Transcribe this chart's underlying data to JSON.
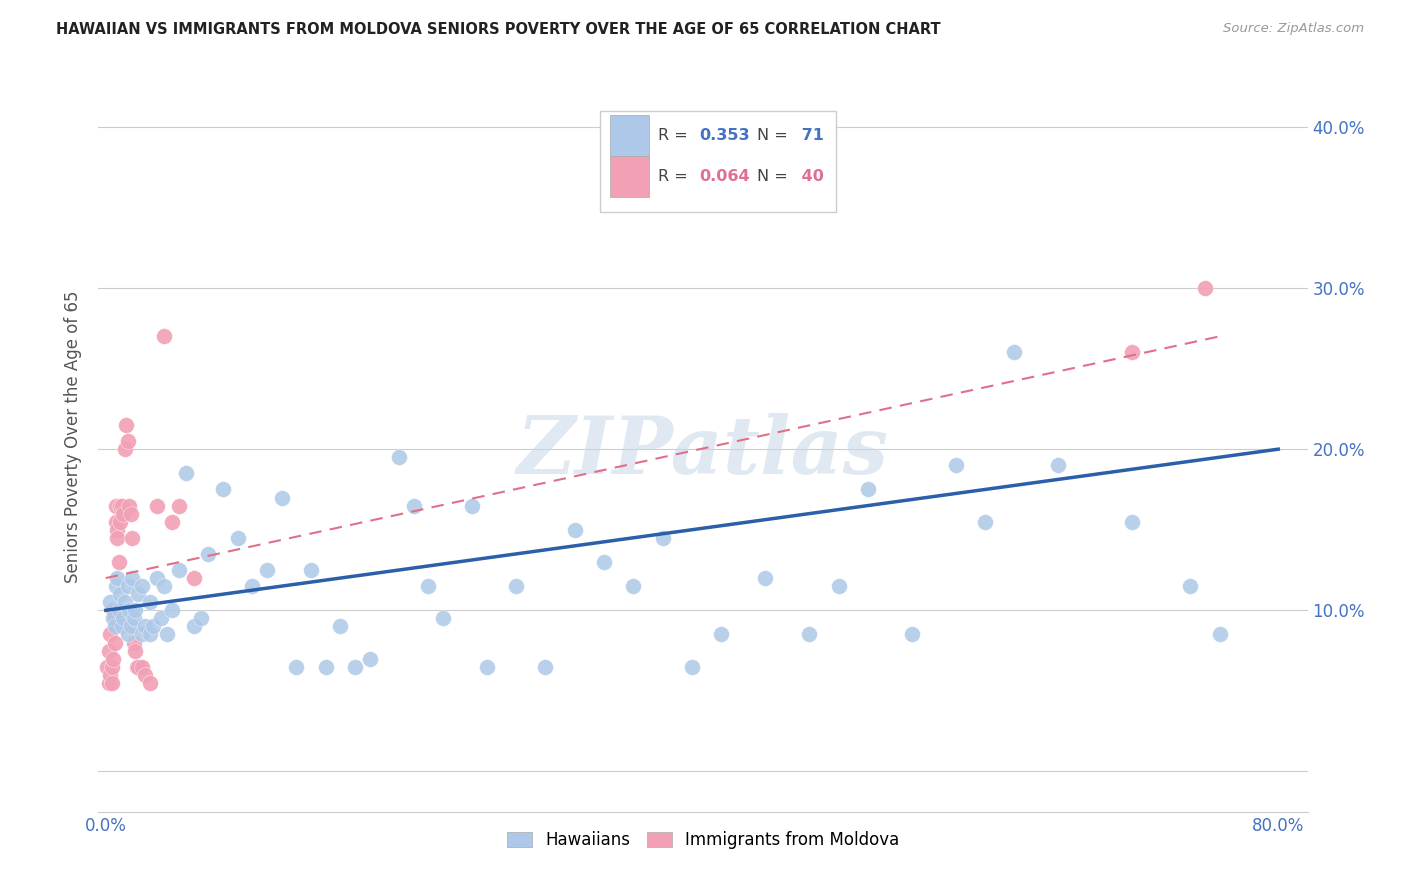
{
  "title": "HAWAIIAN VS IMMIGRANTS FROM MOLDOVA SENIORS POVERTY OVER THE AGE OF 65 CORRELATION CHART",
  "source": "Source: ZipAtlas.com",
  "ylabel": "Seniors Poverty Over the Age of 65",
  "xlim": [
    -0.005,
    0.82
  ],
  "ylim": [
    -0.025,
    0.44
  ],
  "yticks": [
    0.0,
    0.1,
    0.2,
    0.3,
    0.4
  ],
  "xticks": [
    0.0,
    0.1,
    0.2,
    0.3,
    0.4,
    0.5,
    0.6,
    0.7,
    0.8
  ],
  "legend_r_hawaiian": "0.353",
  "legend_n_hawaiian": "71",
  "legend_r_moldova": "0.064",
  "legend_n_moldova": "40",
  "hawaiian_color": "#adc8e8",
  "moldova_color": "#f2a0b5",
  "hawaiian_line_color": "#2c5faa",
  "moldova_line_color": "#e0708a",
  "watermark": "ZIPatlas",
  "haw_line_x0": 0.0,
  "haw_line_x1": 0.8,
  "haw_line_y0": 0.1,
  "haw_line_y1": 0.2,
  "mol_line_x0": 0.0,
  "mol_line_x1": 0.76,
  "mol_line_y0": 0.12,
  "mol_line_y1": 0.27,
  "hawaiian_x": [
    0.003,
    0.005,
    0.006,
    0.007,
    0.008,
    0.009,
    0.01,
    0.011,
    0.012,
    0.013,
    0.015,
    0.015,
    0.016,
    0.017,
    0.018,
    0.019,
    0.02,
    0.022,
    0.025,
    0.025,
    0.027,
    0.03,
    0.03,
    0.032,
    0.035,
    0.038,
    0.04,
    0.042,
    0.045,
    0.05,
    0.055,
    0.06,
    0.065,
    0.07,
    0.08,
    0.09,
    0.1,
    0.11,
    0.12,
    0.13,
    0.14,
    0.15,
    0.16,
    0.17,
    0.18,
    0.2,
    0.21,
    0.22,
    0.23,
    0.25,
    0.26,
    0.28,
    0.3,
    0.32,
    0.34,
    0.36,
    0.38,
    0.4,
    0.42,
    0.45,
    0.48,
    0.5,
    0.52,
    0.55,
    0.58,
    0.6,
    0.62,
    0.65,
    0.7,
    0.74,
    0.76
  ],
  "hawaiian_y": [
    0.105,
    0.095,
    0.09,
    0.115,
    0.12,
    0.1,
    0.11,
    0.09,
    0.095,
    0.105,
    0.115,
    0.085,
    0.1,
    0.09,
    0.12,
    0.095,
    0.1,
    0.11,
    0.115,
    0.085,
    0.09,
    0.105,
    0.085,
    0.09,
    0.12,
    0.095,
    0.115,
    0.085,
    0.1,
    0.125,
    0.185,
    0.09,
    0.095,
    0.135,
    0.175,
    0.145,
    0.115,
    0.125,
    0.17,
    0.065,
    0.125,
    0.065,
    0.09,
    0.065,
    0.07,
    0.195,
    0.165,
    0.115,
    0.095,
    0.165,
    0.065,
    0.115,
    0.065,
    0.15,
    0.13,
    0.115,
    0.145,
    0.065,
    0.085,
    0.12,
    0.085,
    0.115,
    0.175,
    0.085,
    0.19,
    0.155,
    0.26,
    0.19,
    0.155,
    0.115,
    0.085
  ],
  "moldova_x": [
    0.001,
    0.002,
    0.002,
    0.003,
    0.003,
    0.004,
    0.004,
    0.005,
    0.005,
    0.006,
    0.006,
    0.007,
    0.007,
    0.008,
    0.008,
    0.009,
    0.01,
    0.01,
    0.011,
    0.012,
    0.013,
    0.014,
    0.015,
    0.016,
    0.017,
    0.018,
    0.019,
    0.02,
    0.021,
    0.022,
    0.025,
    0.027,
    0.03,
    0.035,
    0.04,
    0.045,
    0.05,
    0.06,
    0.7,
    0.75
  ],
  "moldova_y": [
    0.065,
    0.075,
    0.055,
    0.06,
    0.085,
    0.055,
    0.065,
    0.07,
    0.1,
    0.08,
    0.095,
    0.155,
    0.165,
    0.15,
    0.145,
    0.13,
    0.155,
    0.165,
    0.165,
    0.16,
    0.2,
    0.215,
    0.205,
    0.165,
    0.16,
    0.145,
    0.08,
    0.075,
    0.065,
    0.065,
    0.065,
    0.06,
    0.055,
    0.165,
    0.27,
    0.155,
    0.165,
    0.12,
    0.26,
    0.3
  ]
}
